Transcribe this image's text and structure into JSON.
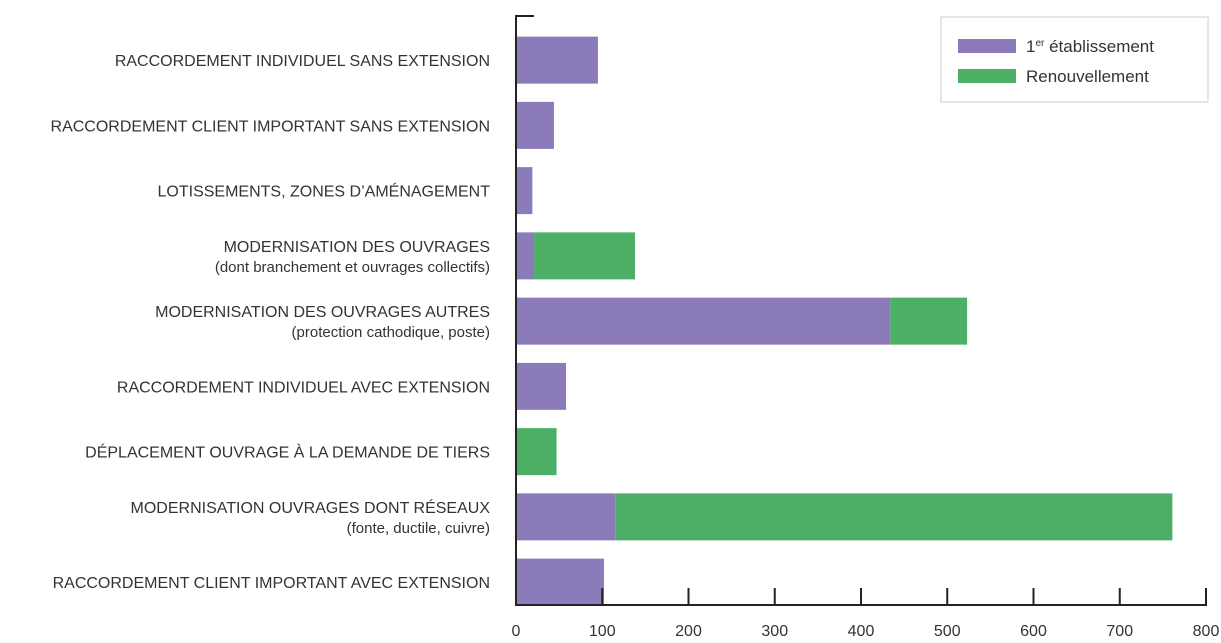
{
  "chart_data": {
    "type": "bar",
    "orientation": "horizontal",
    "stacked": true,
    "categories": [
      {
        "label": "RACCORDEMENT INDIVIDUEL SANS EXTENSION",
        "sub": ""
      },
      {
        "label": "RACCORDEMENT CLIENT IMPORTANT SANS EXTENSION",
        "sub": ""
      },
      {
        "label": "LOTISSEMENTS, ZONES D’AMÉNAGEMENT",
        "sub": ""
      },
      {
        "label": "MODERNISATION DES OUVRAGES",
        "sub": "(dont branchement et ouvrages collectifs)"
      },
      {
        "label": "MODERNISATION DES OUVRAGES AUTRES",
        "sub": "(protection cathodique, poste)"
      },
      {
        "label": "RACCORDEMENT INDIVIDUEL AVEC EXTENSION",
        "sub": ""
      },
      {
        "label": "DÉPLACEMENT OUVRAGE À LA DEMANDE DE TIERS",
        "sub": ""
      },
      {
        "label": "MODERNISATION OUVRAGES DONT RÉSEAUX",
        "sub": "(fonte,  ductile, cuivre)"
      },
      {
        "label": "RACCORDEMENT CLIENT IMPORTANT AVEC EXTENSION",
        "sub": ""
      }
    ],
    "series": [
      {
        "name": "1er établissement",
        "name_main": "1",
        "name_sup": "er",
        "name_rest": " établissement",
        "color": "#8c7bbb",
        "values": [
          95,
          44,
          19,
          21,
          434,
          58,
          0,
          115,
          102
        ]
      },
      {
        "name": "Renouvellement",
        "color": "#4caf65",
        "values": [
          0,
          0,
          0,
          117,
          89,
          0,
          47,
          646,
          0
        ]
      }
    ],
    "xlim": [
      0,
      800
    ],
    "xticks": [
      "0",
      "100",
      "200",
      "300",
      "400",
      "500",
      "600",
      "700",
      "800"
    ],
    "legend_position": "top-right",
    "grid": false
  }
}
